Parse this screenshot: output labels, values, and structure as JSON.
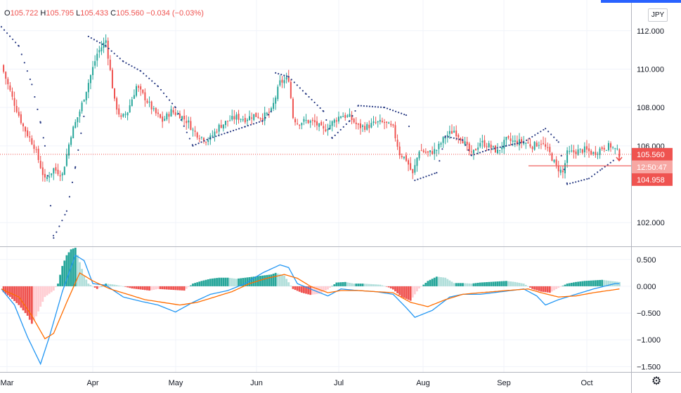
{
  "header": {
    "o_label": "O",
    "o_value": "105.722",
    "h_label": "H",
    "h_value": "105.795",
    "l_label": "L",
    "l_value": "105.433",
    "c_label": "C",
    "c_value": "105.560",
    "change": "−0.034 (−0.03%)"
  },
  "currency_button": "JPY",
  "settings_icon": "gear-icon",
  "colors": {
    "up": "#26a69a",
    "down": "#ef5350",
    "psar": "#2a3c84",
    "macd_line": "#2196f3",
    "signal_line": "#ff6d00",
    "hist_up_strong": "#26a69a",
    "hist_up_weak": "#b2dfdb",
    "hist_down_strong": "#ef5350",
    "hist_down_weak": "#ffcdd2",
    "price_tag": "#ef5350"
  },
  "chart_data": [
    {
      "type": "candlestick",
      "y_ticks": [
        "112.000",
        "110.000",
        "108.000",
        "106.000",
        "102.000"
      ],
      "ylim": [
        100.8,
        113.6
      ],
      "x_ticks": [
        "Mar",
        "Apr",
        "May",
        "Jun",
        "Jul",
        "Aug",
        "Sep",
        "Oct"
      ],
      "last_price": "105.560",
      "countdown": "12:50:47",
      "horizontal_level": "104.958",
      "level_value": 104.958,
      "close_points": [
        [
          0,
          110.2
        ],
        [
          5,
          108.5
        ],
        [
          10,
          107.0
        ],
        [
          15,
          106.0
        ],
        [
          20,
          104.2
        ],
        [
          24,
          104.8
        ],
        [
          28,
          104.5
        ],
        [
          32,
          106.6
        ],
        [
          36,
          107.8
        ],
        [
          40,
          109.3
        ],
        [
          44,
          110.8
        ],
        [
          48,
          111.5
        ],
        [
          52,
          108.3
        ],
        [
          55,
          107.4
        ],
        [
          58,
          107.8
        ],
        [
          62,
          109.1
        ],
        [
          66,
          108.5
        ],
        [
          70,
          107.8
        ],
        [
          74,
          107.3
        ],
        [
          78,
          107.8
        ],
        [
          82,
          107.6
        ],
        [
          86,
          107.2
        ],
        [
          88,
          106.8
        ],
        [
          90,
          106.6
        ],
        [
          94,
          106.3
        ],
        [
          96,
          106.4
        ],
        [
          100,
          107.0
        ],
        [
          104,
          107.3
        ],
        [
          108,
          107.5
        ],
        [
          112,
          107.4
        ],
        [
          116,
          107.6
        ],
        [
          120,
          107.5
        ],
        [
          124,
          107.8
        ],
        [
          128,
          109.3
        ],
        [
          132,
          109.5
        ],
        [
          134,
          107.5
        ],
        [
          136,
          107.2
        ],
        [
          140,
          107.3
        ],
        [
          144,
          107.2
        ],
        [
          148,
          106.8
        ],
        [
          152,
          107.2
        ],
        [
          156,
          107.6
        ],
        [
          160,
          107.5
        ],
        [
          164,
          107.0
        ],
        [
          168,
          107.0
        ],
        [
          172,
          107.2
        ],
        [
          176,
          107.2
        ],
        [
          180,
          106.9
        ],
        [
          183,
          105.6
        ],
        [
          186,
          105.3
        ],
        [
          189,
          104.5
        ],
        [
          192,
          105.8
        ],
        [
          196,
          105.6
        ],
        [
          200,
          105.8
        ],
        [
          204,
          106.5
        ],
        [
          208,
          106.8
        ],
        [
          212,
          106.3
        ],
        [
          216,
          105.5
        ],
        [
          220,
          106.2
        ],
        [
          224,
          106.0
        ],
        [
          228,
          105.7
        ],
        [
          232,
          106.3
        ],
        [
          236,
          106.2
        ],
        [
          240,
          106.2
        ],
        [
          244,
          106.0
        ],
        [
          248,
          106.2
        ],
        [
          252,
          105.6
        ],
        [
          255,
          104.9
        ],
        [
          258,
          104.6
        ],
        [
          260,
          105.6
        ],
        [
          264,
          105.7
        ],
        [
          268,
          105.8
        ],
        [
          272,
          105.6
        ],
        [
          276,
          105.9
        ],
        [
          280,
          106.0
        ],
        [
          284,
          105.6
        ]
      ],
      "psar_points": [
        [
          0,
          112.2
        ],
        [
          8,
          111.2
        ],
        [
          14,
          109.2
        ],
        [
          18,
          107.2
        ],
        [
          20,
          106.0
        ],
        [
          24,
          101.2
        ],
        [
          30,
          102.6
        ],
        [
          34,
          104.9
        ],
        [
          38,
          107.6
        ],
        [
          40,
          111.7
        ],
        [
          48,
          111.2
        ],
        [
          56,
          110.4
        ],
        [
          64,
          109.9
        ],
        [
          72,
          109.1
        ],
        [
          80,
          108.0
        ],
        [
          88,
          106.0
        ],
        [
          96,
          106.4
        ],
        [
          104,
          106.7
        ],
        [
          112,
          107.0
        ],
        [
          120,
          107.3
        ],
        [
          124,
          107.8
        ],
        [
          126,
          109.8
        ],
        [
          132,
          109.6
        ],
        [
          140,
          108.7
        ],
        [
          148,
          107.8
        ],
        [
          152,
          106.4
        ],
        [
          160,
          107.3
        ],
        [
          164,
          108.1
        ],
        [
          176,
          108.0
        ],
        [
          186,
          107.6
        ],
        [
          188,
          106.7
        ],
        [
          190,
          104.2
        ],
        [
          200,
          104.6
        ],
        [
          204,
          106.5
        ],
        [
          212,
          106.3
        ],
        [
          216,
          105.5
        ],
        [
          224,
          105.8
        ],
        [
          232,
          106.0
        ],
        [
          240,
          106.2
        ],
        [
          250,
          106.9
        ],
        [
          256,
          106.2
        ],
        [
          260,
          104.0
        ],
        [
          270,
          104.3
        ],
        [
          276,
          104.8
        ],
        [
          282,
          105.3
        ]
      ],
      "x_range": [
        0,
        290
      ]
    },
    {
      "type": "macd",
      "y_ticks": [
        "0.500",
        "0.000",
        "−0.500",
        "−1.000",
        "−1.500"
      ],
      "y_tick_values": [
        0.5,
        0,
        -0.5,
        -1.0,
        -1.5
      ],
      "ylim": [
        -1.6,
        0.72
      ],
      "histogram": [
        [
          0,
          -0.08
        ],
        [
          4,
          -0.2
        ],
        [
          8,
          -0.35
        ],
        [
          12,
          -0.55
        ],
        [
          14,
          -0.7
        ],
        [
          16,
          -0.56
        ],
        [
          18,
          -0.38
        ],
        [
          20,
          -0.2
        ],
        [
          24,
          -0.08
        ],
        [
          26,
          0.05
        ],
        [
          28,
          0.38
        ],
        [
          30,
          0.58
        ],
        [
          32,
          0.69
        ],
        [
          34,
          0.72
        ],
        [
          36,
          0.45
        ],
        [
          38,
          0.2
        ],
        [
          40,
          0.05
        ],
        [
          44,
          -0.05
        ],
        [
          48,
          0.05
        ],
        [
          52,
          0.03
        ],
        [
          56,
          0.0
        ],
        [
          60,
          -0.04
        ],
        [
          64,
          -0.06
        ],
        [
          68,
          -0.08
        ],
        [
          72,
          -0.05
        ],
        [
          76,
          -0.06
        ],
        [
          80,
          -0.07
        ],
        [
          84,
          -0.08
        ],
        [
          88,
          0.05
        ],
        [
          92,
          0.1
        ],
        [
          96,
          0.14
        ],
        [
          100,
          0.16
        ],
        [
          104,
          0.16
        ],
        [
          108,
          0.14
        ],
        [
          112,
          0.16
        ],
        [
          116,
          0.18
        ],
        [
          120,
          0.2
        ],
        [
          124,
          0.22
        ],
        [
          126,
          0.25
        ],
        [
          130,
          0.2
        ],
        [
          134,
          -0.05
        ],
        [
          138,
          -0.12
        ],
        [
          142,
          -0.16
        ],
        [
          146,
          -0.14
        ],
        [
          150,
          -0.06
        ],
        [
          154,
          0.07
        ],
        [
          158,
          0.08
        ],
        [
          162,
          0.05
        ],
        [
          166,
          0.05
        ],
        [
          170,
          0.04
        ],
        [
          174,
          0.03
        ],
        [
          178,
          -0.02
        ],
        [
          180,
          -0.06
        ],
        [
          184,
          -0.2
        ],
        [
          188,
          -0.27
        ],
        [
          190,
          -0.15
        ],
        [
          192,
          -0.04
        ],
        [
          196,
          0.1
        ],
        [
          200,
          0.18
        ],
        [
          204,
          0.16
        ],
        [
          208,
          0.06
        ],
        [
          212,
          0.06
        ],
        [
          216,
          0.05
        ],
        [
          220,
          0.07
        ],
        [
          224,
          0.08
        ],
        [
          228,
          0.09
        ],
        [
          232,
          0.1
        ],
        [
          236,
          0.08
        ],
        [
          240,
          0.05
        ],
        [
          244,
          -0.05
        ],
        [
          248,
          -0.1
        ],
        [
          252,
          -0.12
        ],
        [
          256,
          -0.03
        ],
        [
          260,
          0.05
        ],
        [
          264,
          0.08
        ],
        [
          268,
          0.1
        ],
        [
          272,
          0.11
        ],
        [
          276,
          0.12
        ],
        [
          280,
          0.1
        ],
        [
          284,
          0.08
        ]
      ],
      "macd_line": [
        [
          0,
          -0.05
        ],
        [
          6,
          -0.35
        ],
        [
          12,
          -0.95
        ],
        [
          18,
          -1.45
        ],
        [
          22,
          -0.95
        ],
        [
          28,
          -0.1
        ],
        [
          34,
          0.58
        ],
        [
          38,
          0.48
        ],
        [
          42,
          0.05
        ],
        [
          48,
          0.02
        ],
        [
          56,
          -0.2
        ],
        [
          64,
          -0.28
        ],
        [
          72,
          -0.35
        ],
        [
          80,
          -0.48
        ],
        [
          88,
          -0.3
        ],
        [
          96,
          -0.15
        ],
        [
          104,
          -0.08
        ],
        [
          112,
          0.05
        ],
        [
          120,
          0.25
        ],
        [
          128,
          0.4
        ],
        [
          132,
          0.35
        ],
        [
          136,
          0.05
        ],
        [
          142,
          -0.05
        ],
        [
          150,
          -0.18
        ],
        [
          156,
          -0.05
        ],
        [
          164,
          -0.08
        ],
        [
          172,
          -0.1
        ],
        [
          180,
          -0.15
        ],
        [
          186,
          -0.4
        ],
        [
          190,
          -0.58
        ],
        [
          198,
          -0.45
        ],
        [
          206,
          -0.2
        ],
        [
          212,
          -0.15
        ],
        [
          220,
          -0.15
        ],
        [
          230,
          -0.1
        ],
        [
          240,
          -0.05
        ],
        [
          246,
          -0.18
        ],
        [
          250,
          -0.35
        ],
        [
          256,
          -0.25
        ],
        [
          264,
          -0.15
        ],
        [
          272,
          -0.05
        ],
        [
          282,
          0.05
        ]
      ],
      "signal_line": [
        [
          0,
          -0.05
        ],
        [
          8,
          -0.2
        ],
        [
          14,
          -0.55
        ],
        [
          20,
          -0.98
        ],
        [
          24,
          -0.88
        ],
        [
          30,
          -0.3
        ],
        [
          36,
          0.25
        ],
        [
          42,
          0.1
        ],
        [
          50,
          -0.05
        ],
        [
          58,
          -0.15
        ],
        [
          66,
          -0.25
        ],
        [
          74,
          -0.3
        ],
        [
          82,
          -0.35
        ],
        [
          90,
          -0.3
        ],
        [
          98,
          -0.2
        ],
        [
          106,
          -0.1
        ],
        [
          114,
          0.05
        ],
        [
          122,
          0.15
        ],
        [
          130,
          0.22
        ],
        [
          136,
          0.15
        ],
        [
          142,
          0.0
        ],
        [
          150,
          -0.12
        ],
        [
          156,
          -0.08
        ],
        [
          164,
          -0.08
        ],
        [
          172,
          -0.1
        ],
        [
          180,
          -0.12
        ],
        [
          188,
          -0.3
        ],
        [
          196,
          -0.38
        ],
        [
          204,
          -0.25
        ],
        [
          212,
          -0.15
        ],
        [
          220,
          -0.12
        ],
        [
          232,
          -0.08
        ],
        [
          242,
          -0.05
        ],
        [
          248,
          -0.12
        ],
        [
          256,
          -0.2
        ],
        [
          264,
          -0.18
        ],
        [
          272,
          -0.12
        ],
        [
          284,
          -0.05
        ]
      ],
      "x_range": [
        0,
        290
      ]
    }
  ]
}
